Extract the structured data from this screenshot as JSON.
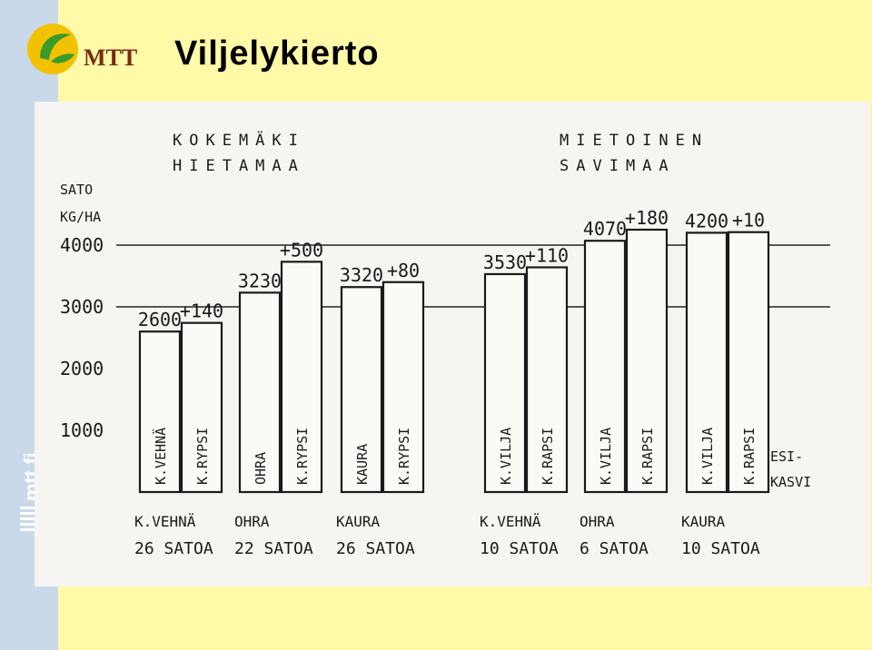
{
  "slide": {
    "title": "Viljelykierto",
    "logo_text": "MTT",
    "side_text": "mtt.fi"
  },
  "colors": {
    "background": "#fff9a8",
    "sidebar": "#c9d9ea",
    "logo_green": "#3a9a2a",
    "logo_yellow": "#f2c200"
  },
  "chart_data": {
    "type": "bar",
    "groups": [
      {
        "site": "KOKEMÄKI",
        "soil": "HIETAMAA"
      },
      {
        "site": "MIETOINEN",
        "soil": "SAVIMAA"
      }
    ],
    "ylabel_line1": "SATO",
    "ylabel_line2": "KG/HA",
    "ylim": [
      0,
      4400
    ],
    "yticks": [
      1000,
      2000,
      3000,
      4000
    ],
    "reference_lines": [
      3000,
      4000
    ],
    "legend_label_line1": "ESI-",
    "legend_label_line2": "KASVI",
    "pairs": [
      {
        "group": 0,
        "crop": "K.VEHNÄ",
        "trials": "26 SATOA",
        "bars": [
          {
            "precrop": "K.VEHNÄ",
            "value": 2600,
            "label": "2600"
          },
          {
            "precrop": "K.RYPSI",
            "value": 2740,
            "label": "+140"
          }
        ]
      },
      {
        "group": 0,
        "crop": "OHRA",
        "trials": "22 SATOA",
        "bars": [
          {
            "precrop": "OHRA",
            "value": 3230,
            "label": "3230"
          },
          {
            "precrop": "K.RYPSI",
            "value": 3730,
            "label": "+500"
          }
        ]
      },
      {
        "group": 0,
        "crop": "KAURA",
        "trials": "26 SATOA",
        "bars": [
          {
            "precrop": "KAURA",
            "value": 3320,
            "label": "3320"
          },
          {
            "precrop": "K.RYPSI",
            "value": 3400,
            "label": "+80"
          }
        ]
      },
      {
        "group": 1,
        "crop": "K.VEHNÄ",
        "trials": "10 SATOA",
        "bars": [
          {
            "precrop": "K.VILJA",
            "value": 3530,
            "label": "3530"
          },
          {
            "precrop": "K.RAPSI",
            "value": 3640,
            "label": "+110"
          }
        ]
      },
      {
        "group": 1,
        "crop": "OHRA",
        "trials": "6 SATOA",
        "bars": [
          {
            "precrop": "K.VILJA",
            "value": 4070,
            "label": "4070"
          },
          {
            "precrop": "K.RAPSI",
            "value": 4250,
            "label": "+180"
          }
        ]
      },
      {
        "group": 1,
        "crop": "KAURA",
        "trials": "10 SATOA",
        "bars": [
          {
            "precrop": "K.VILJA",
            "value": 4200,
            "label": "4200"
          },
          {
            "precrop": "K.RAPSI",
            "value": 4210,
            "label": "+10"
          }
        ]
      }
    ]
  }
}
